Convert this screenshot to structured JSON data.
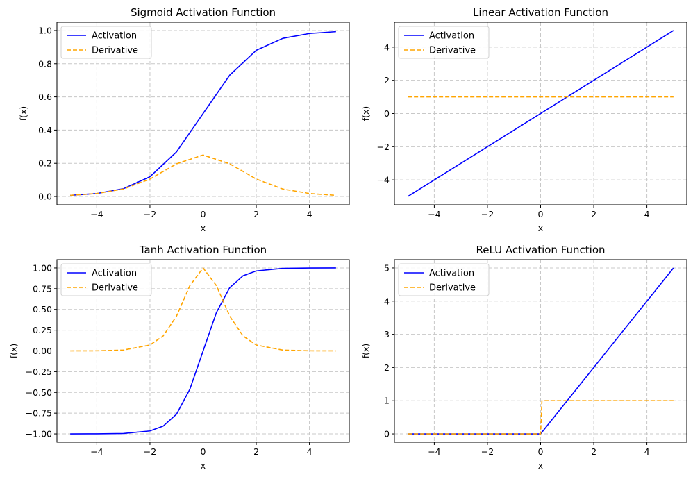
{
  "chart_data": [
    {
      "type": "line",
      "title": "Sigmoid Activation Function",
      "xlabel": "x",
      "ylabel": "f(x)",
      "xlim": [
        -5.5,
        5.5
      ],
      "ylim": [
        -0.05,
        1.05
      ],
      "xticks": [
        -4,
        -2,
        0,
        2,
        4
      ],
      "yticks": [
        0.0,
        0.2,
        0.4,
        0.6,
        0.8,
        1.0
      ],
      "ytick_labels": [
        "0.0",
        "0.2",
        "0.4",
        "0.6",
        "0.8",
        "1.0"
      ],
      "grid": true,
      "legend": "top-left",
      "x": [
        -5,
        -4,
        -3,
        -2,
        -1,
        0,
        1,
        2,
        3,
        4,
        5
      ],
      "series": [
        {
          "name": "Activation",
          "color": "#0000ff",
          "style": "solid",
          "values": [
            0.007,
            0.018,
            0.047,
            0.119,
            0.269,
            0.5,
            0.731,
            0.881,
            0.953,
            0.982,
            0.993
          ]
        },
        {
          "name": "Derivative",
          "color": "#ffa500",
          "style": "dashed",
          "values": [
            0.007,
            0.018,
            0.045,
            0.105,
            0.197,
            0.25,
            0.197,
            0.105,
            0.045,
            0.018,
            0.007
          ]
        }
      ]
    },
    {
      "type": "line",
      "title": "Linear Activation Function",
      "xlabel": "x",
      "ylabel": "f(x)",
      "xlim": [
        -5.5,
        5.5
      ],
      "ylim": [
        -5.5,
        5.5
      ],
      "xticks": [
        -4,
        -2,
        0,
        2,
        4
      ],
      "yticks": [
        -4,
        -2,
        0,
        2,
        4
      ],
      "ytick_labels": [
        "−4",
        "−2",
        "0",
        "2",
        "4"
      ],
      "grid": true,
      "legend": "top-left",
      "x": [
        -5,
        5
      ],
      "series": [
        {
          "name": "Activation",
          "color": "#0000ff",
          "style": "solid",
          "values": [
            -5,
            5
          ]
        },
        {
          "name": "Derivative",
          "color": "#ffa500",
          "style": "dashed",
          "values": [
            1,
            1
          ]
        }
      ]
    },
    {
      "type": "line",
      "title": "Tanh Activation Function",
      "xlabel": "x",
      "ylabel": "f(x)",
      "xlim": [
        -5.5,
        5.5
      ],
      "ylim": [
        -1.1,
        1.1
      ],
      "xticks": [
        -4,
        -2,
        0,
        2,
        4
      ],
      "yticks": [
        -1.0,
        -0.75,
        -0.5,
        -0.25,
        0.0,
        0.25,
        0.5,
        0.75,
        1.0
      ],
      "ytick_labels": [
        "−1.00",
        "−0.75",
        "−0.50",
        "−0.25",
        "0.00",
        "0.25",
        "0.50",
        "0.75",
        "1.00"
      ],
      "grid": true,
      "legend": "top-left",
      "x": [
        -5,
        -4,
        -3,
        -2,
        -1.5,
        -1,
        -0.5,
        0,
        0.5,
        1,
        1.5,
        2,
        3,
        4,
        5
      ],
      "series": [
        {
          "name": "Activation",
          "color": "#0000ff",
          "style": "solid",
          "values": [
            -1.0,
            -0.999,
            -0.995,
            -0.964,
            -0.905,
            -0.762,
            -0.462,
            0.0,
            0.462,
            0.762,
            0.905,
            0.964,
            0.995,
            0.999,
            1.0
          ]
        },
        {
          "name": "Derivative",
          "color": "#ffa500",
          "style": "dashed",
          "values": [
            0.0,
            0.001,
            0.01,
            0.071,
            0.181,
            0.42,
            0.786,
            1.0,
            0.786,
            0.42,
            0.181,
            0.071,
            0.01,
            0.001,
            0.0
          ]
        }
      ]
    },
    {
      "type": "line",
      "title": "ReLU Activation Function",
      "xlabel": "x",
      "ylabel": "f(x)",
      "xlim": [
        -5.5,
        5.5
      ],
      "ylim": [
        -0.25,
        5.25
      ],
      "xticks": [
        -4,
        -2,
        0,
        2,
        4
      ],
      "yticks": [
        0,
        1,
        2,
        3,
        4,
        5
      ],
      "ytick_labels": [
        "0",
        "1",
        "2",
        "3",
        "4",
        "5"
      ],
      "grid": true,
      "legend": "top-left",
      "x": [
        -5,
        0,
        0.05,
        5
      ],
      "series": [
        {
          "name": "Activation",
          "color": "#0000ff",
          "style": "solid",
          "values": [
            0,
            0,
            0.05,
            5
          ]
        },
        {
          "name": "Derivative",
          "color": "#ffa500",
          "style": "dashed",
          "values": [
            0,
            0,
            1,
            1
          ]
        }
      ]
    }
  ]
}
